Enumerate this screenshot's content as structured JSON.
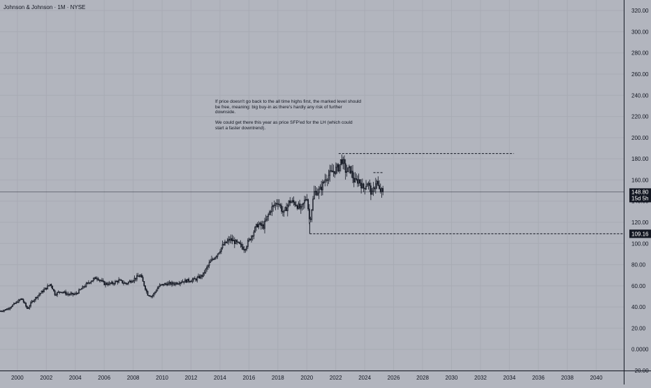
{
  "header": {
    "symbol": "Johnson & Johnson · 1M · NYSE"
  },
  "annotation": {
    "paragraph_1": "If price doesn't go back to the all time highs first, the marked level should be free, meaning: big buy-in as there's hardly any risk of further downside.",
    "paragraph_2": "We could get there this year as price SFP'ed for the LH (which could start a faster downtrend)."
  },
  "colors": {
    "background": "#b2b5be",
    "candle": "#131722",
    "grid": "#a8abb4",
    "axis_line": "#131722",
    "label_bg": "#131722",
    "label_text": "#ffffff"
  },
  "chart_data": {
    "type": "candlestick",
    "timeframe": "1M",
    "y_axis": {
      "min": -20,
      "max": 330,
      "ticks": [
        -20,
        0,
        20,
        40,
        60,
        80,
        100,
        120,
        140,
        160,
        180,
        200,
        220,
        240,
        260,
        280,
        300,
        320
      ],
      "tick_labels": [
        "−20.00",
        "0.0000",
        "20.00",
        "40.00",
        "60.00",
        "80.00",
        "100.00",
        "120.00",
        "140.00",
        "160.00",
        "180.00",
        "200.00",
        "220.00",
        "240.00",
        "260.00",
        "280.00",
        "300.00",
        "320.00"
      ]
    },
    "x_axis": {
      "min": 1998.8,
      "max": 2041.9,
      "ticks": [
        2000,
        2002,
        2004,
        2006,
        2008,
        2010,
        2012,
        2014,
        2016,
        2018,
        2020,
        2022,
        2024,
        2026,
        2028,
        2030,
        2032,
        2034,
        2036,
        2038,
        2040
      ],
      "tick_labels": [
        "2000",
        "2002",
        "2004",
        "2006",
        "2008",
        "2010",
        "2012",
        "2014",
        "2016",
        "2018",
        "2020",
        "2022",
        "2024",
        "2026",
        "2028",
        "2030",
        "2032",
        "2034",
        "2036",
        "2038",
        "2040"
      ]
    },
    "price_anchors": [
      [
        1998.8,
        36
      ],
      [
        1999.3,
        38
      ],
      [
        1999.8,
        43
      ],
      [
        2000.3,
        48
      ],
      [
        2000.7,
        38
      ],
      [
        2001.0,
        45
      ],
      [
        2001.5,
        52
      ],
      [
        2002.0,
        58
      ],
      [
        2002.3,
        62
      ],
      [
        2002.6,
        52
      ],
      [
        2003.0,
        55
      ],
      [
        2003.5,
        52
      ],
      [
        2004.0,
        52
      ],
      [
        2004.5,
        58
      ],
      [
        2005.0,
        64
      ],
      [
        2005.5,
        68
      ],
      [
        2006.0,
        62
      ],
      [
        2006.5,
        62
      ],
      [
        2007.0,
        65
      ],
      [
        2007.5,
        62
      ],
      [
        2008.0,
        66
      ],
      [
        2008.5,
        70
      ],
      [
        2009.0,
        52
      ],
      [
        2009.3,
        50
      ],
      [
        2009.8,
        60
      ],
      [
        2010.3,
        62
      ],
      [
        2010.8,
        62
      ],
      [
        2011.3,
        64
      ],
      [
        2011.8,
        65
      ],
      [
        2012.3,
        66
      ],
      [
        2012.8,
        70
      ],
      [
        2013.3,
        82
      ],
      [
        2013.8,
        90
      ],
      [
        2014.2,
        98
      ],
      [
        2014.7,
        104
      ],
      [
        2015.2,
        100
      ],
      [
        2015.7,
        95
      ],
      [
        2016.2,
        108
      ],
      [
        2016.6,
        118
      ],
      [
        2017.0,
        116
      ],
      [
        2017.5,
        132
      ],
      [
        2018.0,
        140
      ],
      [
        2018.4,
        128
      ],
      [
        2018.8,
        140
      ],
      [
        2019.2,
        138
      ],
      [
        2019.6,
        132
      ],
      [
        2020.0,
        145
      ],
      [
        2020.2,
        120
      ],
      [
        2020.5,
        148
      ],
      [
        2020.9,
        150
      ],
      [
        2021.3,
        162
      ],
      [
        2021.8,
        168
      ],
      [
        2022.2,
        172
      ],
      [
        2022.4,
        180
      ],
      [
        2022.7,
        168
      ],
      [
        2023.0,
        170
      ],
      [
        2023.3,
        158
      ],
      [
        2023.6,
        160
      ],
      [
        2023.9,
        152
      ],
      [
        2024.2,
        158
      ],
      [
        2024.5,
        146
      ],
      [
        2024.8,
        160
      ],
      [
        2025.0,
        150
      ],
      [
        2025.3,
        148.8
      ]
    ],
    "last_candle_x": 2025.3,
    "current_price": 148.8,
    "current_price_label": "148.80",
    "countdown_label": "15d 5h",
    "levels": [
      {
        "price": 185,
        "x_start": 2022.2,
        "x_end": 2034.3,
        "style": "dashed"
      },
      {
        "price": 109.16,
        "x_start": 2020.2,
        "x_end": 2041.9,
        "style": "dashed",
        "label": "109.16"
      },
      {
        "price": 167,
        "x_start": 2024.6,
        "x_end": 2025.3,
        "style": "dashed"
      }
    ],
    "vertical_markers": [
      {
        "x": 2020.2,
        "from": 109.16,
        "to": 120
      }
    ]
  }
}
